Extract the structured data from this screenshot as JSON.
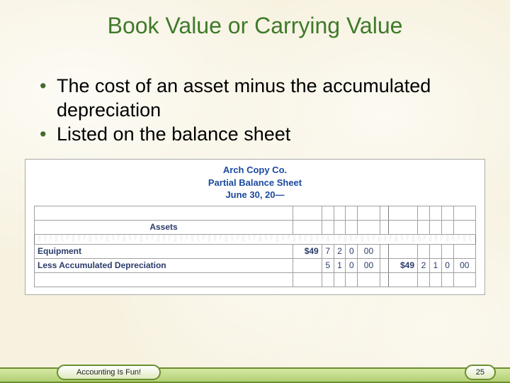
{
  "title": "Book Value or Carrying Value",
  "bullets": [
    "The cost of an asset minus the accumulated depreciation",
    "Listed on the balance sheet"
  ],
  "figure": {
    "company": "Arch Copy Co.",
    "report": "Partial Balance Sheet",
    "date": "June 30, 20—",
    "section_header": "Assets",
    "rows": [
      {
        "label": "Equipment",
        "col1": {
          "dollar": "$49",
          "d1": "7",
          "d2": "2",
          "d3": "0",
          "cents": "00"
        },
        "col2": {
          "dollar": "",
          "d1": "",
          "d2": "",
          "d3": "",
          "cents": ""
        }
      },
      {
        "label": "Less Accumulated Depreciation",
        "col1": {
          "dollar": "",
          "d1": "5",
          "d2": "1",
          "d3": "0",
          "cents": "00"
        },
        "col2": {
          "dollar": "$49",
          "d1": "2",
          "d2": "1",
          "d3": "0",
          "cents": "00"
        }
      },
      {
        "label": "",
        "col1": {
          "dollar": "",
          "d1": "",
          "d2": "",
          "d3": "",
          "cents": ""
        },
        "col2": {
          "dollar": "",
          "d1": "",
          "d2": "",
          "d3": "",
          "cents": ""
        }
      }
    ]
  },
  "footer": {
    "text": "Accounting Is Fun!",
    "page": "25"
  },
  "colors": {
    "title": "#3f7a2a",
    "bullet_marker": "#426b2d",
    "figure_text": "#1a4aa0",
    "rail_border": "#6a8f2f",
    "background": "#f7f2e0"
  }
}
